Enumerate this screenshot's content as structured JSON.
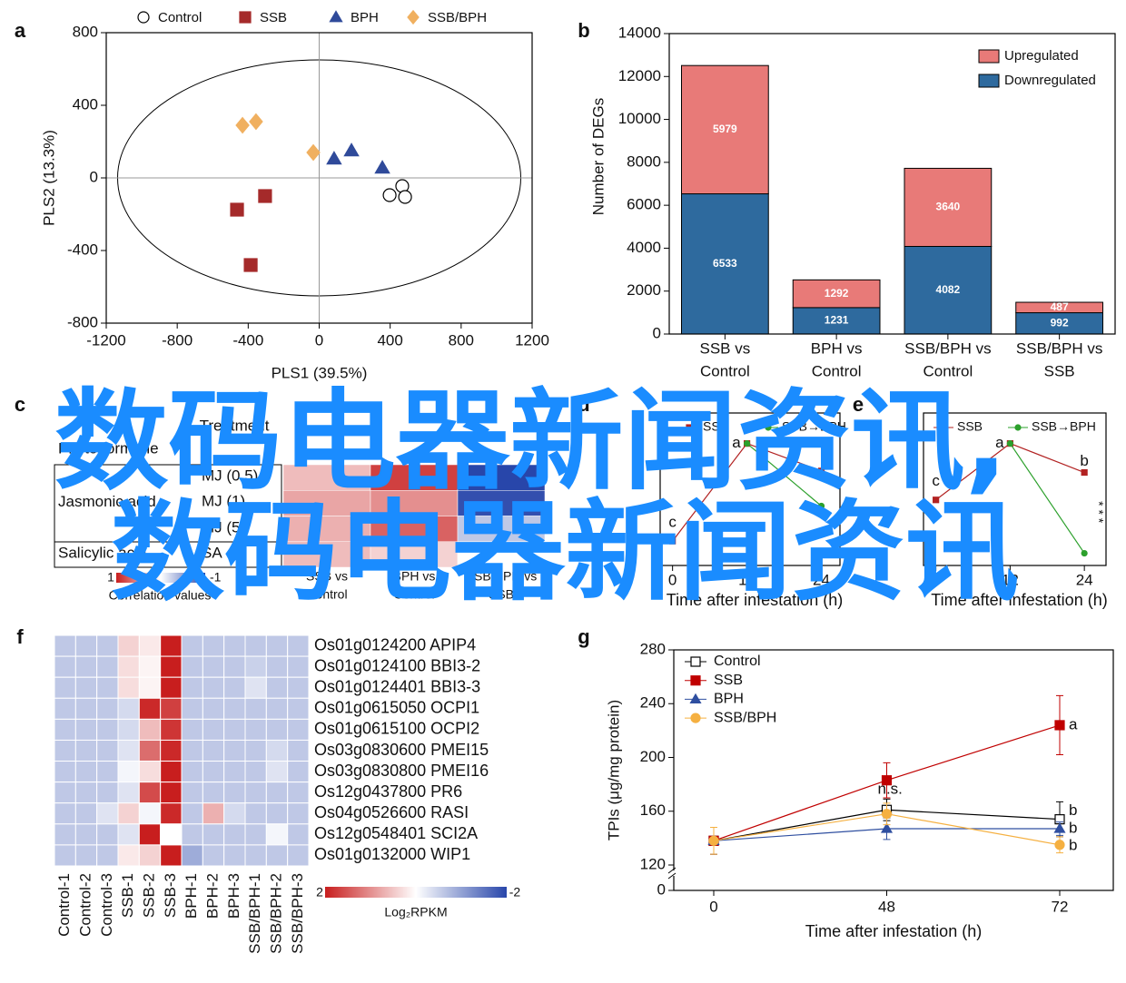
{
  "watermark": [
    "数码电器新闻资讯,",
    "数码电器新闻资讯"
  ],
  "chart_data": [
    {
      "type": "scatter",
      "panel": "a",
      "xlabel": "PLS1 (39.5%)",
      "ylabel": "PLS2 (13.3%)",
      "xlim": [
        -1200,
        1200
      ],
      "ylim": [
        -800,
        800
      ],
      "xticks": [
        -1200,
        -800,
        -400,
        0,
        400,
        800,
        1200
      ],
      "yticks": [
        -800,
        -400,
        0,
        400,
        800
      ],
      "series": [
        {
          "name": "Control",
          "color": "#000000",
          "marker": "circle",
          "open": true,
          "x": [
            468,
            397,
            484
          ],
          "y": [
            -45,
            -95,
            -105
          ]
        },
        {
          "name": "SSB",
          "color": "#a52a2a",
          "marker": "square",
          "x": [
            -463,
            -305,
            -386
          ],
          "y": [
            -175,
            -100,
            -480
          ]
        },
        {
          "name": "BPH",
          "color": "#2f4a9a",
          "marker": "triangle",
          "x": [
            84,
            182,
            356
          ],
          "y": [
            105,
            150,
            55
          ]
        },
        {
          "name": "SSB/BPH",
          "color": "#f0b060",
          "marker": "diamond",
          "x": [
            -432,
            -356,
            -33
          ],
          "y": [
            290,
            310,
            140
          ]
        }
      ]
    },
    {
      "type": "stacked_bar",
      "panel": "b",
      "ylabel": "Number of DEGs",
      "categories": [
        [
          "SSB vs",
          "Control"
        ],
        [
          "BPH vs",
          "Control"
        ],
        [
          "SSB/BPH vs",
          "Control"
        ],
        [
          "SSB/BPH vs",
          "SSB"
        ]
      ],
      "ylim": [
        0,
        14000
      ],
      "yticks": [
        0,
        2000,
        4000,
        6000,
        8000,
        10000,
        12000,
        14000
      ],
      "series": [
        {
          "name": "Downregulated",
          "color": "#2e6a9e",
          "values": [
            6533,
            1231,
            4082,
            992
          ]
        },
        {
          "name": "Upregulated",
          "color": "#e87a78",
          "values": [
            5979,
            1292,
            3640,
            487
          ]
        }
      ]
    },
    {
      "type": "heatmap",
      "panel": "c",
      "headers": [
        "Phytohormone",
        "Treatment"
      ],
      "groups": [
        {
          "name": "Jasmonic acid",
          "rows": [
            "MJ (0.5)",
            "MJ (1)",
            "MJ (5)"
          ]
        },
        {
          "name": "Salicylic acid",
          "rows": [
            "SA"
          ]
        }
      ],
      "columns": [
        [
          "SSB vs",
          "Control"
        ],
        [
          "BPH vs",
          "Control"
        ],
        [
          "SSB/BPH vs",
          "SSB"
        ]
      ],
      "values": [
        [
          0.3,
          0.85,
          -1
        ],
        [
          0.4,
          0.5,
          -0.95
        ],
        [
          0.35,
          0.7,
          -0.3
        ],
        [
          0.3,
          0.2,
          0
        ]
      ],
      "colorbar_ticks": [
        1,
        -1
      ],
      "colorbar_label": "Correlation values"
    },
    {
      "type": "line",
      "panel": "d",
      "xlabel": "Time after infestation (h)",
      "xlim": [
        -2,
        27
      ],
      "ylim": [
        0,
        1
      ],
      "xticks": [
        0,
        12,
        24
      ],
      "series": [
        {
          "name": "SSB",
          "color": "#b22222",
          "marker": "square",
          "x": [
            0,
            12,
            24
          ],
          "y": [
            0.16,
            0.8,
            0.62
          ]
        },
        {
          "name": "SSB→BPH",
          "color": "#2ca02c",
          "marker": "circle",
          "x": [
            12,
            24
          ],
          "y": [
            0.8,
            0.39
          ]
        }
      ],
      "annotations": [
        {
          "text": "c",
          "x": 0,
          "y": 0.28
        },
        {
          "text": "a",
          "x": 10.3,
          "y": 0.8
        }
      ]
    },
    {
      "type": "line",
      "panel": "e",
      "xlabel": "Time after infestation (h)",
      "xlim": [
        -2,
        27.5
      ],
      "ylim": [
        0,
        1
      ],
      "xticks": [
        0,
        12,
        24
      ],
      "series": [
        {
          "name": "SSB",
          "color": "#b22222",
          "marker": "square",
          "x": [
            0,
            12,
            24
          ],
          "y": [
            0.43,
            0.8,
            0.61
          ]
        },
        {
          "name": "SSB→BPH",
          "color": "#2ca02c",
          "marker": "circle",
          "x": [
            12,
            24
          ],
          "y": [
            0.8,
            0.08
          ]
        }
      ],
      "annotations": [
        {
          "text": "c",
          "x": 0,
          "y": 0.55
        },
        {
          "text": "a",
          "x": 10.3,
          "y": 0.8
        },
        {
          "text": "b",
          "x": 24,
          "y": 0.68
        },
        {
          "text": "* * *",
          "x": 26.2,
          "y": 0.35,
          "vertical": true
        }
      ]
    },
    {
      "type": "heatmap",
      "panel": "f",
      "rows": [
        "Os01g0124200 APIP4",
        "Os01g0124100 BBI3-2",
        "Os01g0124401 BBI3-3",
        "Os01g0615050 OCPI1",
        "Os01g0615100 OCPI2",
        "Os03g0830600 PMEI15",
        "Os03g0830800 PMEI16",
        "Os12g0437800 PR6",
        "Os04g0526600 RASI",
        "Os12g0548401 SCI2A",
        "Os01g0132000 WIP1"
      ],
      "columns": [
        "Control-1",
        "Control-2",
        "Control-3",
        "SSB-1",
        "SSB-2",
        "SSB-3",
        "BPH-1",
        "BPH-2",
        "BPH-3",
        "SSB/BPH-1",
        "SSB/BPH-2",
        "SSB/BPH-3"
      ],
      "values": [
        [
          -0.6,
          -0.6,
          -0.6,
          0.4,
          0.2,
          2,
          -0.6,
          -0.6,
          -0.6,
          -0.6,
          -0.6,
          -0.6
        ],
        [
          -0.6,
          -0.6,
          -0.6,
          0.3,
          0.1,
          2,
          -0.6,
          -0.6,
          -0.6,
          -0.5,
          -0.6,
          -0.6
        ],
        [
          -0.6,
          -0.6,
          -0.6,
          0.3,
          0.1,
          2,
          -0.6,
          -0.6,
          -0.6,
          -0.3,
          -0.6,
          -0.6
        ],
        [
          -0.6,
          -0.6,
          -0.6,
          -0.4,
          1.9,
          1.7,
          -0.6,
          -0.6,
          -0.6,
          -0.6,
          -0.6,
          -0.6
        ],
        [
          -0.6,
          -0.6,
          -0.6,
          -0.4,
          0.6,
          1.8,
          -0.6,
          -0.6,
          -0.6,
          -0.6,
          -0.6,
          -0.6
        ],
        [
          -0.6,
          -0.6,
          -0.6,
          -0.3,
          1.3,
          1.9,
          -0.6,
          -0.6,
          -0.6,
          -0.6,
          -0.4,
          -0.6
        ],
        [
          -0.6,
          -0.6,
          -0.6,
          -0.1,
          0.3,
          2,
          -0.6,
          -0.6,
          -0.6,
          -0.6,
          -0.3,
          -0.6
        ],
        [
          -0.6,
          -0.6,
          -0.6,
          -0.3,
          1.6,
          2,
          -0.6,
          -0.6,
          -0.6,
          -0.6,
          -0.6,
          -0.6
        ],
        [
          -0.6,
          -0.6,
          -0.3,
          0.4,
          -0.1,
          1.9,
          -0.6,
          0.7,
          -0.4,
          -0.6,
          -0.6,
          -0.6
        ],
        [
          -0.6,
          -0.6,
          -0.6,
          -0.3,
          2,
          0,
          -0.6,
          -0.6,
          -0.6,
          -0.6,
          -0.1,
          -0.6
        ],
        [
          -0.6,
          -0.6,
          -0.6,
          0.2,
          0.4,
          2,
          -0.9,
          -0.6,
          -0.6,
          -0.6,
          -0.6,
          -0.6
        ]
      ],
      "colorbar_ticks": [
        2,
        -2
      ],
      "colorbar_label": "Log₂RPKM"
    },
    {
      "type": "line",
      "panel": "g",
      "xlabel": "Time after infestation (h)",
      "ylabel": "TPIs (μg/mg protein)",
      "categories": [
        "0",
        "48",
        "72"
      ],
      "ylim": [
        120,
        280
      ],
      "yticks": [
        120,
        160,
        200,
        240,
        280
      ],
      "break_tick": 0,
      "series": [
        {
          "name": "Control",
          "color": "#000000",
          "marker": "square",
          "open": true,
          "values": [
            138,
            161,
            154
          ],
          "errors": [
            10,
            8,
            13
          ]
        },
        {
          "name": "SSB",
          "color": "#c00000",
          "marker": "square",
          "values": [
            138,
            183,
            224
          ],
          "errors": [
            10,
            13,
            22
          ]
        },
        {
          "name": "BPH",
          "color": "#2f4fa0",
          "marker": "triangle",
          "values": [
            138,
            147,
            147
          ],
          "errors": [
            10,
            8,
            5
          ]
        },
        {
          "name": "SSB/BPH",
          "color": "#f5b041",
          "marker": "circle",
          "values": [
            138,
            158,
            135
          ],
          "errors": [
            10,
            8,
            6
          ]
        }
      ],
      "annotations": [
        {
          "text": "n.s.",
          "category": 1,
          "y": 176
        },
        {
          "text": "a",
          "category": 2,
          "y": 224
        },
        {
          "text": "b",
          "category": 2,
          "y": 160
        },
        {
          "text": "b",
          "category": 2,
          "y": 147
        },
        {
          "text": "b",
          "category": 2,
          "y": 134
        }
      ]
    }
  ]
}
